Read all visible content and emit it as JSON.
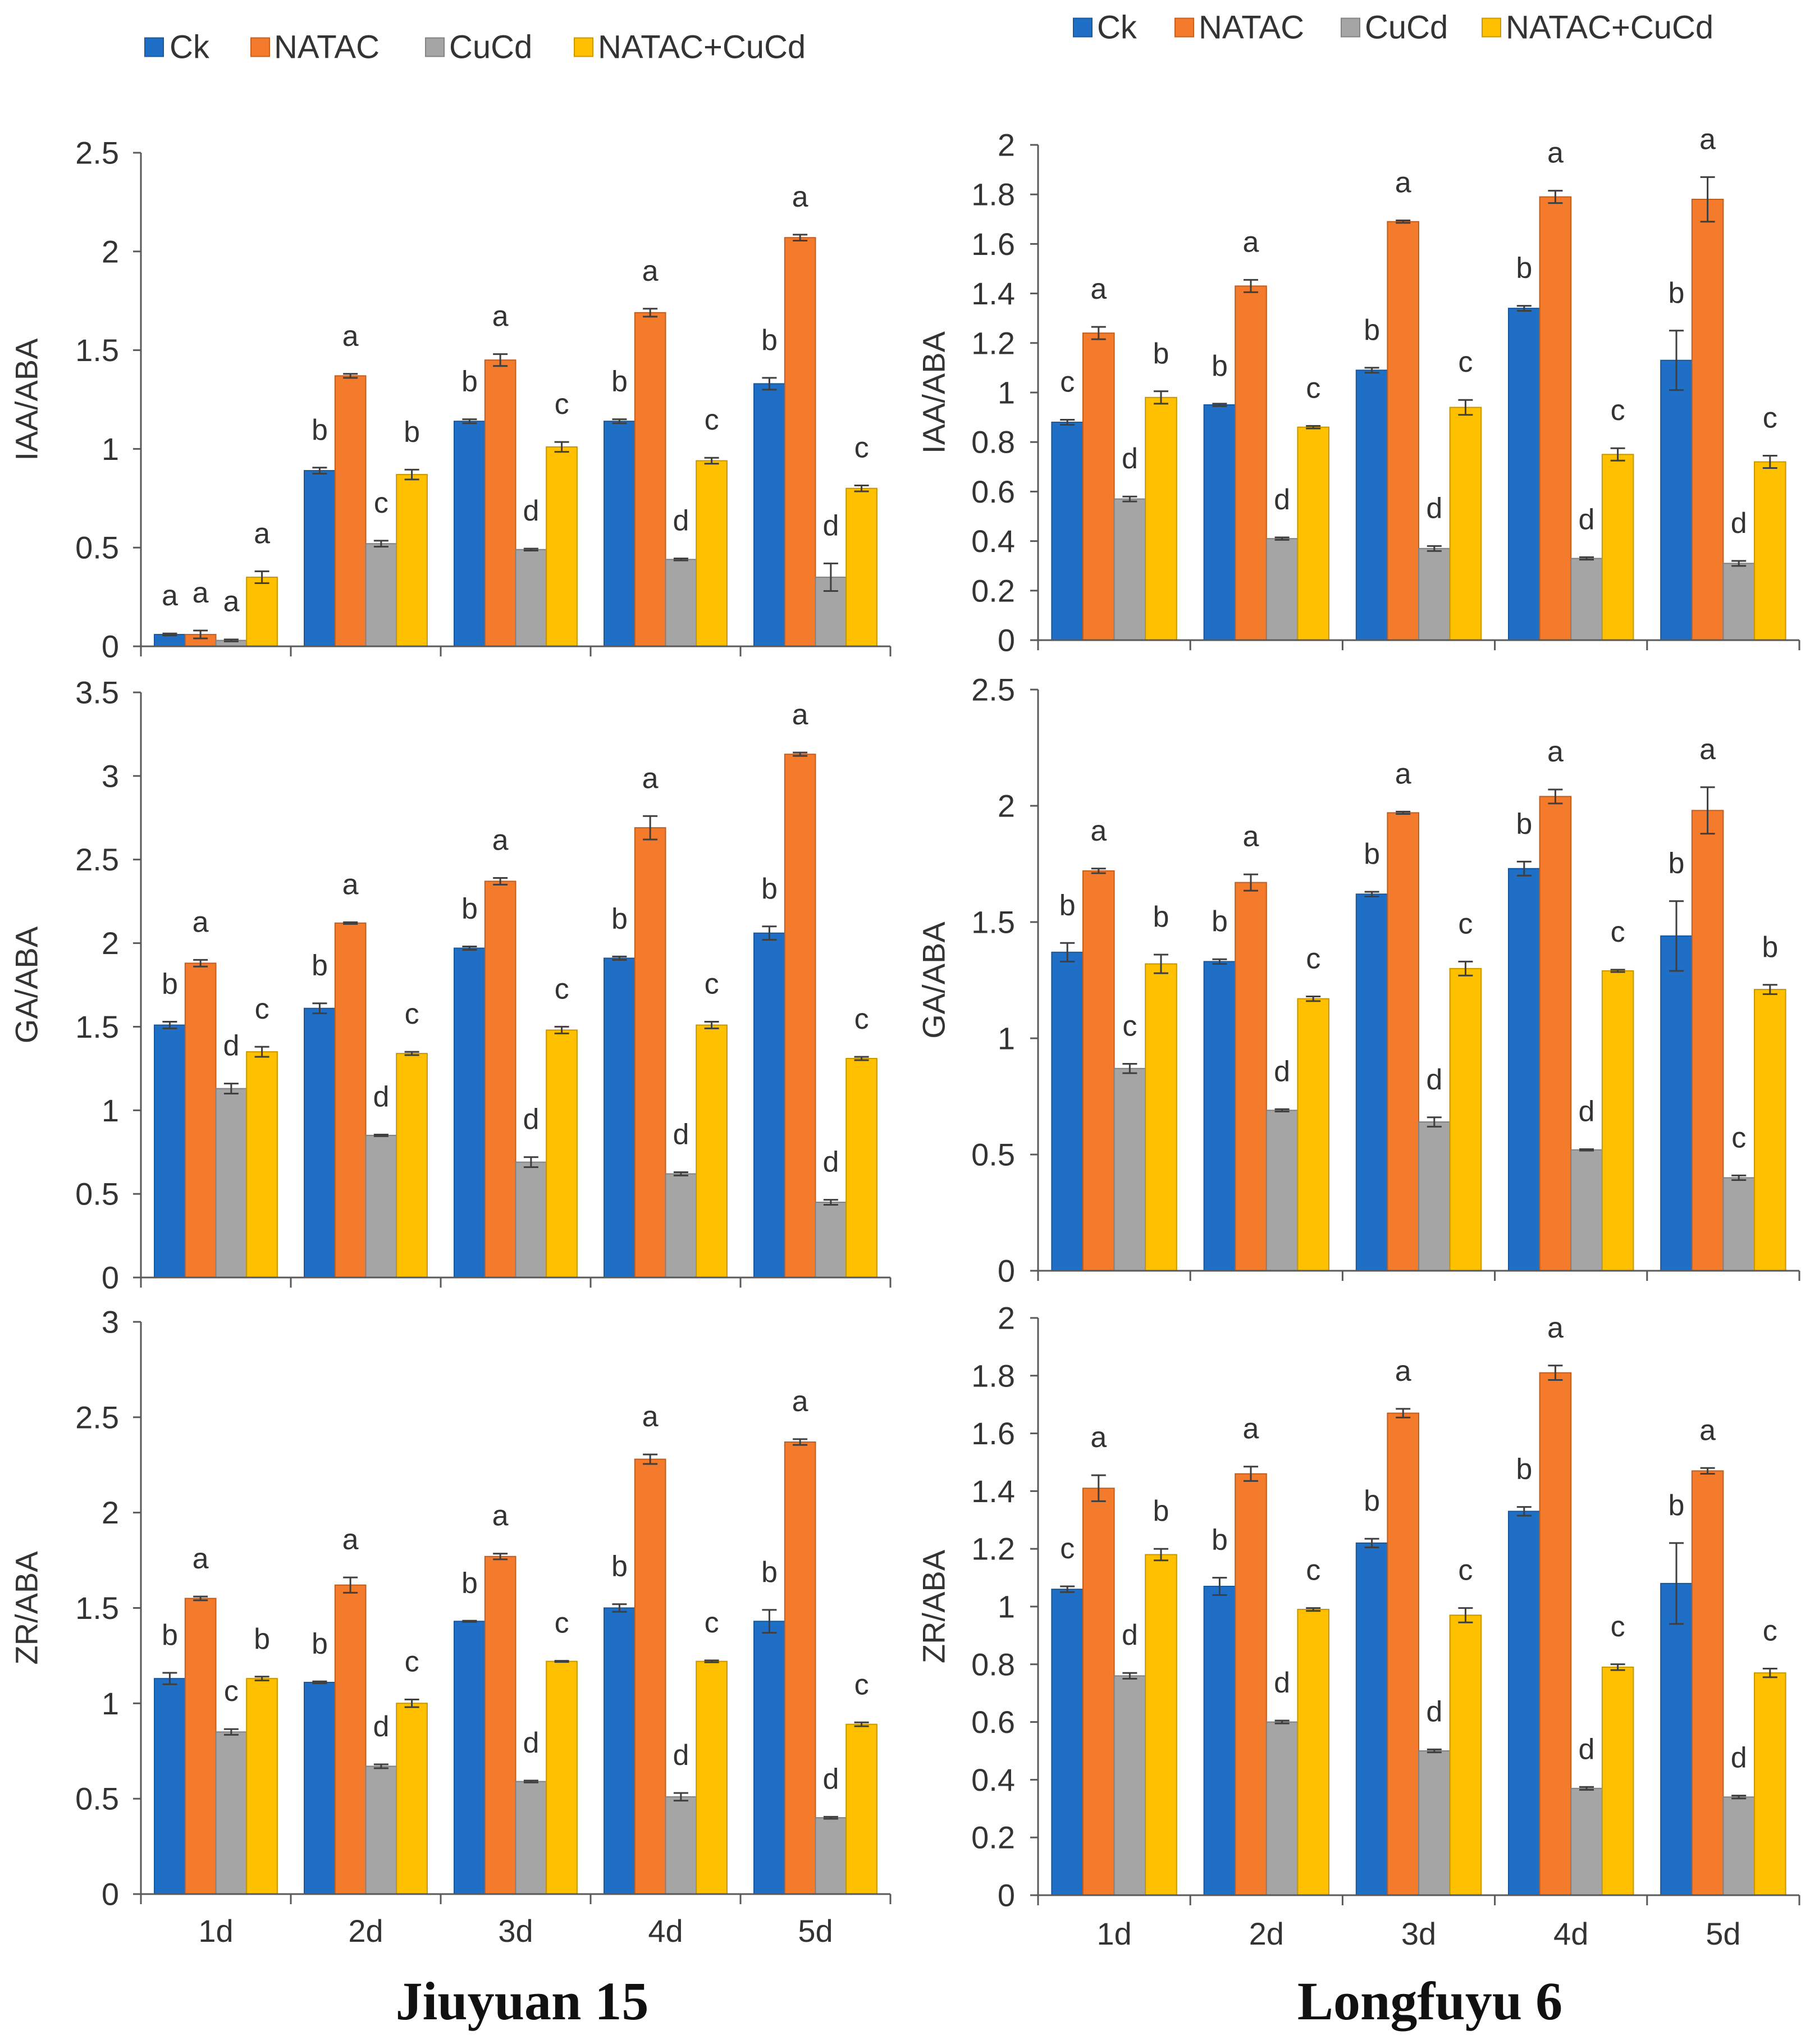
{
  "colors": {
    "Ck": "#1f6fc6",
    "NATAC": "#f47a2c",
    "CuCd": "#a5a5a5",
    "NATAC+CuCd": "#ffc000",
    "axis": "#595959",
    "error_bar": "#3f3f3f"
  },
  "chart_data": {
    "type": "bar",
    "legend": [
      "Ck",
      "NATAC",
      "CuCd",
      "NATAC+CuCd"
    ],
    "categories": [
      "1d",
      "2d",
      "3d",
      "4d",
      "5d"
    ],
    "panels": [
      {
        "title": "Jiuyuan 15",
        "charts": [
          {
            "ylabel": "IAA/ABA",
            "ylim": [
              0,
              2.5
            ],
            "yticks": [
              "0",
              "0.5",
              "1",
              "1.5",
              "2",
              "2.5"
            ],
            "series": {
              "Ck": {
                "values": [
                  0.06,
                  0.89,
                  1.14,
                  1.14,
                  1.33
                ],
                "errors": [
                  0.005,
                  0.015,
                  0.01,
                  0.01,
                  0.03
                ],
                "letters": [
                  "a",
                  "b",
                  "b",
                  "b",
                  "b"
                ]
              },
              "NATAC": {
                "values": [
                  0.06,
                  1.37,
                  1.45,
                  1.69,
                  2.07
                ],
                "errors": [
                  0.02,
                  0.01,
                  0.03,
                  0.02,
                  0.015
                ],
                "letters": [
                  "a",
                  "a",
                  "a",
                  "a",
                  "a"
                ]
              },
              "CuCd": {
                "values": [
                  0.03,
                  0.52,
                  0.49,
                  0.44,
                  0.35
                ],
                "errors": [
                  0.005,
                  0.015,
                  0.005,
                  0.005,
                  0.07
                ],
                "letters": [
                  "a",
                  "c",
                  "d",
                  "d",
                  "d"
                ]
              },
              "NATAC+CuCd": {
                "values": [
                  0.35,
                  0.87,
                  1.01,
                  0.94,
                  0.8
                ],
                "errors": [
                  0.03,
                  0.025,
                  0.025,
                  0.015,
                  0.015
                ],
                "letters": [
                  "a",
                  "b",
                  "c",
                  "c",
                  "c"
                ]
              }
            }
          },
          {
            "ylabel": "GA/ABA",
            "ylim": [
              0,
              3.5
            ],
            "yticks": [
              "0",
              "0.5",
              "1",
              "1.5",
              "2",
              "2.5",
              "3",
              "3.5"
            ],
            "series": {
              "Ck": {
                "values": [
                  1.51,
                  1.61,
                  1.97,
                  1.91,
                  2.06
                ],
                "errors": [
                  0.02,
                  0.03,
                  0.01,
                  0.01,
                  0.04
                ],
                "letters": [
                  "b",
                  "b",
                  "b",
                  "b",
                  "b"
                ]
              },
              "NATAC": {
                "values": [
                  1.88,
                  2.12,
                  2.37,
                  2.69,
                  3.13
                ],
                "errors": [
                  0.02,
                  0.005,
                  0.02,
                  0.07,
                  0.01
                ],
                "letters": [
                  "a",
                  "a",
                  "a",
                  "a",
                  "a"
                ]
              },
              "CuCd": {
                "values": [
                  1.13,
                  0.85,
                  0.69,
                  0.62,
                  0.45
                ],
                "errors": [
                  0.03,
                  0.005,
                  0.03,
                  0.01,
                  0.015
                ],
                "letters": [
                  "d",
                  "d",
                  "d",
                  "d",
                  "d"
                ]
              },
              "NATAC+CuCd": {
                "values": [
                  1.35,
                  1.34,
                  1.48,
                  1.51,
                  1.31
                ],
                "errors": [
                  0.03,
                  0.01,
                  0.02,
                  0.02,
                  0.01
                ],
                "letters": [
                  "c",
                  "c",
                  "c",
                  "c",
                  "c"
                ]
              }
            }
          },
          {
            "ylabel": "ZR/ABA",
            "ylim": [
              0,
              3
            ],
            "yticks": [
              "0",
              "0.5",
              "1",
              "1.5",
              "2",
              "2.5",
              "3"
            ],
            "series": {
              "Ck": {
                "values": [
                  1.13,
                  1.11,
                  1.43,
                  1.5,
                  1.43
                ],
                "errors": [
                  0.03,
                  0.005,
                  0.003,
                  0.02,
                  0.06
                ],
                "letters": [
                  "b",
                  "b",
                  "b",
                  "b",
                  "b"
                ]
              },
              "NATAC": {
                "values": [
                  1.55,
                  1.62,
                  1.77,
                  2.28,
                  2.37
                ],
                "errors": [
                  0.01,
                  0.04,
                  0.015,
                  0.025,
                  0.015
                ],
                "letters": [
                  "a",
                  "a",
                  "a",
                  "a",
                  "a"
                ]
              },
              "CuCd": {
                "values": [
                  0.85,
                  0.67,
                  0.59,
                  0.51,
                  0.4
                ],
                "errors": [
                  0.015,
                  0.01,
                  0.005,
                  0.02,
                  0.005
                ],
                "letters": [
                  "c",
                  "d",
                  "d",
                  "d",
                  "d"
                ]
              },
              "NATAC+CuCd": {
                "values": [
                  1.13,
                  1.0,
                  1.22,
                  1.22,
                  0.89
                ],
                "errors": [
                  0.01,
                  0.02,
                  0.003,
                  0.005,
                  0.01
                ],
                "letters": [
                  "b",
                  "c",
                  "c",
                  "c",
                  "c"
                ]
              }
            }
          }
        ]
      },
      {
        "title": "Longfuyu 6",
        "charts": [
          {
            "ylabel": "IAA/ABA",
            "ylim": [
              0,
              2
            ],
            "yticks": [
              "0",
              "0.2",
              "0.4",
              "0.6",
              "0.8",
              "1",
              "1.2",
              "1.4",
              "1.6",
              "1.8",
              "2"
            ],
            "series": {
              "Ck": {
                "values": [
                  0.88,
                  0.95,
                  1.09,
                  1.34,
                  1.13
                ],
                "errors": [
                  0.01,
                  0.005,
                  0.01,
                  0.01,
                  0.12
                ],
                "letters": [
                  "c",
                  "b",
                  "b",
                  "b",
                  "b"
                ]
              },
              "NATAC": {
                "values": [
                  1.24,
                  1.43,
                  1.69,
                  1.79,
                  1.78
                ],
                "errors": [
                  0.025,
                  0.025,
                  0.005,
                  0.025,
                  0.09
                ],
                "letters": [
                  "a",
                  "a",
                  "a",
                  "a",
                  "a"
                ]
              },
              "CuCd": {
                "values": [
                  0.57,
                  0.41,
                  0.37,
                  0.33,
                  0.31
                ],
                "errors": [
                  0.01,
                  0.005,
                  0.01,
                  0.005,
                  0.01
                ],
                "letters": [
                  "d",
                  "d",
                  "d",
                  "d",
                  "d"
                ]
              },
              "NATAC+CuCd": {
                "values": [
                  0.98,
                  0.86,
                  0.94,
                  0.75,
                  0.72
                ],
                "errors": [
                  0.025,
                  0.005,
                  0.03,
                  0.025,
                  0.025
                ],
                "letters": [
                  "b",
                  "c",
                  "c",
                  "c",
                  "c"
                ]
              }
            }
          },
          {
            "ylabel": "GA/ABA",
            "ylim": [
              0,
              2.5
            ],
            "yticks": [
              "0",
              "0.5",
              "1",
              "1.5",
              "2",
              "2.5"
            ],
            "series": {
              "Ck": {
                "values": [
                  1.37,
                  1.33,
                  1.62,
                  1.73,
                  1.44
                ],
                "errors": [
                  0.04,
                  0.01,
                  0.01,
                  0.03,
                  0.15
                ],
                "letters": [
                  "b",
                  "b",
                  "b",
                  "b",
                  "b"
                ]
              },
              "NATAC": {
                "values": [
                  1.72,
                  1.67,
                  1.97,
                  2.04,
                  1.98
                ],
                "errors": [
                  0.01,
                  0.035,
                  0.005,
                  0.03,
                  0.1
                ],
                "letters": [
                  "a",
                  "a",
                  "a",
                  "a",
                  "a"
                ]
              },
              "CuCd": {
                "values": [
                  0.87,
                  0.69,
                  0.64,
                  0.52,
                  0.4
                ],
                "errors": [
                  0.02,
                  0.005,
                  0.02,
                  0.003,
                  0.01
                ],
                "letters": [
                  "c",
                  "d",
                  "d",
                  "d",
                  "c"
                ]
              },
              "NATAC+CuCd": {
                "values": [
                  1.32,
                  1.17,
                  1.3,
                  1.29,
                  1.21
                ],
                "errors": [
                  0.04,
                  0.01,
                  0.03,
                  0.005,
                  0.02
                ],
                "letters": [
                  "b",
                  "c",
                  "c",
                  "c",
                  "b"
                ]
              }
            }
          },
          {
            "ylabel": "ZR/ABA",
            "ylim": [
              0,
              2
            ],
            "yticks": [
              "0",
              "0.2",
              "0.4",
              "0.6",
              "0.8",
              "1",
              "1.2",
              "1.4",
              "1.6",
              "1.8",
              "2"
            ],
            "series": {
              "Ck": {
                "values": [
                  1.06,
                  1.07,
                  1.22,
                  1.33,
                  1.08
                ],
                "errors": [
                  0.01,
                  0.03,
                  0.015,
                  0.015,
                  0.14
                ],
                "letters": [
                  "c",
                  "b",
                  "b",
                  "b",
                  "b"
                ]
              },
              "NATAC": {
                "values": [
                  1.41,
                  1.46,
                  1.67,
                  1.81,
                  1.47
                ],
                "errors": [
                  0.045,
                  0.025,
                  0.015,
                  0.025,
                  0.01
                ],
                "letters": [
                  "a",
                  "a",
                  "a",
                  "a",
                  "a"
                ]
              },
              "CuCd": {
                "values": [
                  0.76,
                  0.6,
                  0.5,
                  0.37,
                  0.34
                ],
                "errors": [
                  0.01,
                  0.005,
                  0.005,
                  0.005,
                  0.005
                ],
                "letters": [
                  "d",
                  "d",
                  "d",
                  "d",
                  "d"
                ]
              },
              "NATAC+CuCd": {
                "values": [
                  1.18,
                  0.99,
                  0.97,
                  0.79,
                  0.77
                ],
                "errors": [
                  0.02,
                  0.005,
                  0.025,
                  0.01,
                  0.015
                ],
                "letters": [
                  "b",
                  "c",
                  "c",
                  "c",
                  "c"
                ]
              }
            }
          }
        ]
      }
    ]
  }
}
